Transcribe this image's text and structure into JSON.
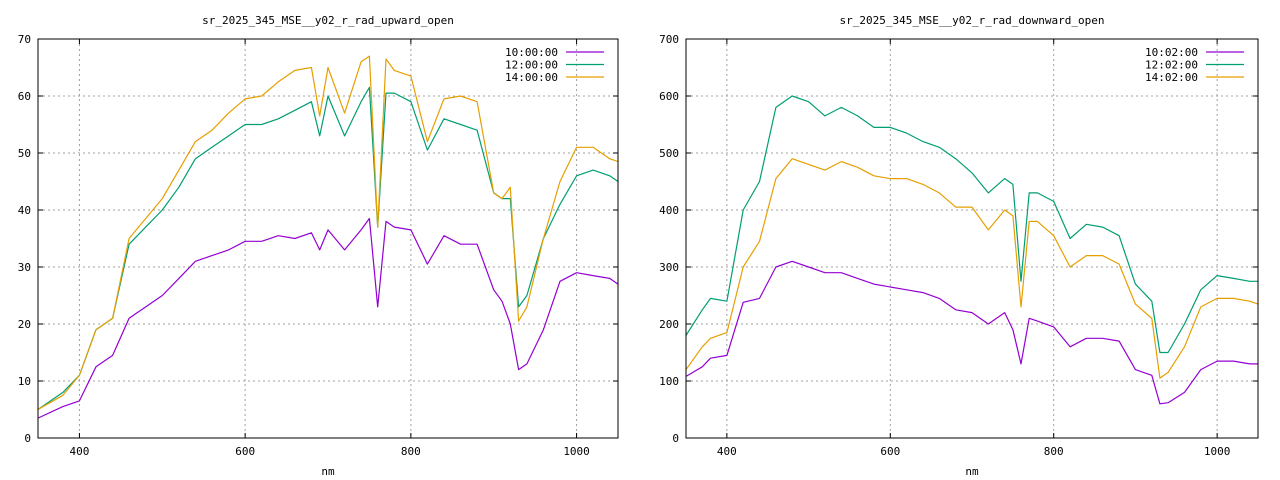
{
  "chart_data": [
    {
      "type": "line",
      "title": "sr_2025_345_MSE__y02_r_rad_upward_open",
      "xlabel": "nm",
      "ylabel": "",
      "xlim": [
        350,
        1050
      ],
      "ylim": [
        0,
        70
      ],
      "xticks": [
        400,
        600,
        800,
        1000
      ],
      "yticks": [
        0,
        10,
        20,
        30,
        40,
        50,
        60,
        70
      ],
      "grid": true,
      "legend_position": "top-right",
      "series": [
        {
          "name": "10:00:00",
          "color": "#9400d3",
          "x": [
            350,
            380,
            400,
            420,
            440,
            460,
            480,
            500,
            520,
            540,
            560,
            580,
            600,
            620,
            640,
            660,
            680,
            690,
            700,
            720,
            740,
            750,
            760,
            770,
            780,
            800,
            820,
            840,
            860,
            880,
            900,
            910,
            920,
            930,
            940,
            960,
            980,
            1000,
            1020,
            1040,
            1050
          ],
          "y": [
            3.5,
            5.5,
            6.5,
            12.5,
            14.5,
            21,
            23,
            25,
            28,
            31,
            32,
            33,
            34.5,
            34.5,
            35.5,
            35,
            36,
            33,
            36.5,
            33,
            36.5,
            38.5,
            23,
            38,
            37,
            36.5,
            30.5,
            35.5,
            34,
            34,
            26,
            24,
            20,
            12,
            13,
            19,
            27.5,
            29,
            28.5,
            28,
            27
          ]
        },
        {
          "name": "12:00:00",
          "color": "#009e73",
          "x": [
            350,
            380,
            400,
            420,
            440,
            460,
            480,
            500,
            520,
            540,
            560,
            580,
            600,
            620,
            640,
            660,
            680,
            690,
            700,
            720,
            740,
            750,
            760,
            770,
            780,
            800,
            820,
            840,
            860,
            880,
            900,
            910,
            920,
            930,
            940,
            960,
            980,
            1000,
            1020,
            1040,
            1050
          ],
          "y": [
            5,
            8,
            11,
            19,
            21,
            34,
            37,
            40,
            44,
            49,
            51,
            53,
            55,
            55,
            56,
            57.5,
            59,
            53,
            60,
            53,
            59,
            61.5,
            37,
            60.5,
            60.5,
            59,
            50.5,
            56,
            55,
            54,
            43,
            42,
            42,
            23,
            25,
            35,
            41,
            46,
            47,
            46,
            45
          ]
        },
        {
          "name": "14:00:00",
          "color": "#e69f00",
          "x": [
            350,
            380,
            400,
            420,
            440,
            460,
            480,
            500,
            520,
            540,
            560,
            580,
            600,
            620,
            640,
            660,
            680,
            690,
            700,
            720,
            740,
            750,
            760,
            770,
            780,
            800,
            820,
            840,
            860,
            880,
            900,
            910,
            920,
            930,
            940,
            960,
            980,
            1000,
            1020,
            1040,
            1050
          ],
          "y": [
            5,
            7.5,
            11,
            19,
            21,
            35,
            38.5,
            42,
            47,
            52,
            54,
            57,
            59.5,
            60,
            62.5,
            64.5,
            65,
            56.5,
            65,
            57,
            66,
            67,
            37,
            66.5,
            64.5,
            63.5,
            52,
            59.5,
            60,
            59,
            43,
            42,
            44,
            20.5,
            23,
            35,
            45,
            51,
            51,
            49,
            48.5
          ]
        }
      ]
    },
    {
      "type": "line",
      "title": "sr_2025_345_MSE__y02_r_rad_downward_open",
      "xlabel": "nm",
      "ylabel": "",
      "xlim": [
        350,
        1050
      ],
      "ylim": [
        0,
        700
      ],
      "xticks": [
        400,
        600,
        800,
        1000
      ],
      "yticks": [
        0,
        100,
        200,
        300,
        400,
        500,
        600,
        700
      ],
      "grid": true,
      "legend_position": "top-right",
      "series": [
        {
          "name": "10:02:00",
          "color": "#9400d3",
          "x": [
            350,
            370,
            380,
            400,
            420,
            440,
            460,
            480,
            500,
            520,
            540,
            560,
            580,
            600,
            620,
            640,
            660,
            680,
            700,
            720,
            740,
            750,
            760,
            770,
            780,
            800,
            820,
            840,
            860,
            880,
            900,
            920,
            930,
            940,
            960,
            980,
            1000,
            1020,
            1040,
            1050
          ],
          "y": [
            108,
            125,
            140,
            145,
            238,
            245,
            300,
            310,
            300,
            290,
            290,
            280,
            270,
            265,
            260,
            255,
            245,
            225,
            220,
            200,
            220,
            190,
            130,
            210,
            205,
            195,
            160,
            175,
            175,
            170,
            120,
            110,
            60,
            62,
            80,
            120,
            135,
            135,
            130,
            130
          ]
        },
        {
          "name": "12:02:00",
          "color": "#009e73",
          "x": [
            350,
            370,
            380,
            400,
            420,
            440,
            460,
            480,
            500,
            520,
            540,
            560,
            580,
            600,
            620,
            640,
            660,
            680,
            700,
            720,
            740,
            750,
            760,
            770,
            780,
            800,
            820,
            840,
            860,
            880,
            900,
            920,
            930,
            940,
            960,
            980,
            1000,
            1020,
            1040,
            1050
          ],
          "y": [
            180,
            225,
            245,
            240,
            400,
            450,
            580,
            600,
            590,
            565,
            580,
            565,
            545,
            545,
            535,
            520,
            510,
            490,
            465,
            430,
            455,
            445,
            275,
            430,
            430,
            415,
            350,
            375,
            370,
            355,
            270,
            240,
            150,
            150,
            200,
            260,
            285,
            280,
            275,
            275
          ]
        },
        {
          "name": "14:02:00",
          "color": "#e69f00",
          "x": [
            350,
            370,
            380,
            400,
            420,
            440,
            460,
            480,
            500,
            520,
            540,
            560,
            580,
            600,
            620,
            640,
            660,
            680,
            700,
            720,
            740,
            750,
            760,
            770,
            780,
            800,
            820,
            840,
            860,
            880,
            900,
            920,
            930,
            940,
            960,
            980,
            1000,
            1020,
            1040,
            1050
          ],
          "y": [
            120,
            160,
            175,
            185,
            300,
            345,
            455,
            490,
            480,
            470,
            485,
            475,
            460,
            455,
            455,
            445,
            430,
            405,
            405,
            365,
            400,
            390,
            230,
            380,
            380,
            355,
            300,
            320,
            320,
            305,
            235,
            210,
            105,
            115,
            160,
            230,
            245,
            245,
            240,
            235
          ]
        }
      ]
    }
  ]
}
